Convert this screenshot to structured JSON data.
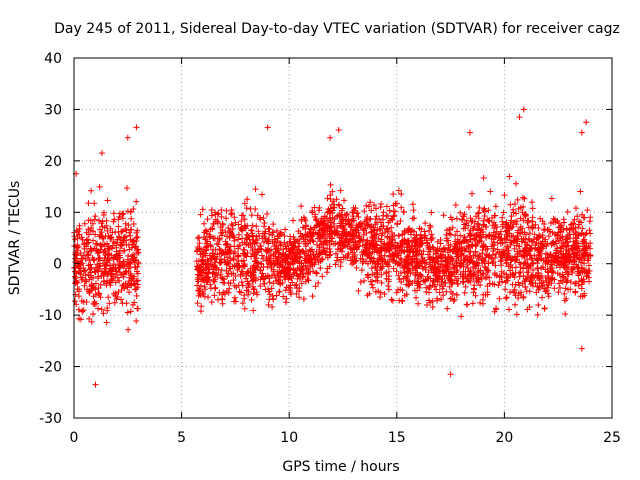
{
  "chart_data": {
    "type": "scatter",
    "title": "Day 245 of 2011, Sidereal Day-to-day VTEC variation (SDTVAR) for receiver cagz",
    "xlabel": "GPS time / hours",
    "ylabel": "SDTVAR / TECUs",
    "xlim": [
      0,
      25
    ],
    "ylim": [
      -30,
      40
    ],
    "xticks": [
      0,
      5,
      10,
      15,
      20,
      25
    ],
    "yticks": [
      -30,
      -20,
      -10,
      0,
      10,
      20,
      30,
      40
    ],
    "grid": true,
    "marker": "+",
    "color": "#ff0000",
    "series": [
      {
        "name": "SDTVAR",
        "description_of_density": "dense red '+' markers; approximate envelope of the point cloud sampled per hour",
        "segments": [
          {
            "x_range": [
              0.0,
              3.0
            ]
          },
          {
            "x_range": [
              5.7,
              24.0
            ]
          }
        ],
        "envelope": [
          {
            "x": 0.0,
            "center": 0,
            "spread": 8
          },
          {
            "x": 0.5,
            "center": 0,
            "spread": 9
          },
          {
            "x": 1.0,
            "center": 0,
            "spread": 10
          },
          {
            "x": 1.5,
            "center": 1,
            "spread": 9
          },
          {
            "x": 2.0,
            "center": 1,
            "spread": 9
          },
          {
            "x": 2.5,
            "center": 1,
            "spread": 10
          },
          {
            "x": 3.0,
            "center": 0,
            "spread": 8
          },
          {
            "x": 5.7,
            "center": 0,
            "spread": 7
          },
          {
            "x": 6.5,
            "center": 1,
            "spread": 8
          },
          {
            "x": 7.5,
            "center": 2,
            "spread": 9
          },
          {
            "x": 8.5,
            "center": 2,
            "spread": 9
          },
          {
            "x": 9.0,
            "center": 1,
            "spread": 8
          },
          {
            "x": 10.0,
            "center": 0,
            "spread": 5
          },
          {
            "x": 11.0,
            "center": 3,
            "spread": 7
          },
          {
            "x": 12.0,
            "center": 7,
            "spread": 7
          },
          {
            "x": 13.0,
            "center": 5,
            "spread": 5
          },
          {
            "x": 14.0,
            "center": 3,
            "spread": 8
          },
          {
            "x": 15.0,
            "center": 3,
            "spread": 8
          },
          {
            "x": 16.0,
            "center": 1,
            "spread": 7
          },
          {
            "x": 17.0,
            "center": 0,
            "spread": 6
          },
          {
            "x": 18.0,
            "center": 2,
            "spread": 8
          },
          {
            "x": 19.0,
            "center": 3,
            "spread": 9
          },
          {
            "x": 20.0,
            "center": 3,
            "spread": 9
          },
          {
            "x": 21.0,
            "center": 2,
            "spread": 9
          },
          {
            "x": 22.0,
            "center": 1,
            "spread": 7
          },
          {
            "x": 23.0,
            "center": 2,
            "spread": 7
          },
          {
            "x": 24.0,
            "center": 2,
            "spread": 8
          }
        ],
        "notable_points": [
          {
            "x": 1.0,
            "y": -23.5
          },
          {
            "x": 1.3,
            "y": 21.5
          },
          {
            "x": 2.5,
            "y": 24.5
          },
          {
            "x": 2.9,
            "y": 26.5
          },
          {
            "x": 9.0,
            "y": 26.5
          },
          {
            "x": 11.9,
            "y": 24.5
          },
          {
            "x": 12.3,
            "y": 26.0
          },
          {
            "x": 17.5,
            "y": -21.5
          },
          {
            "x": 18.4,
            "y": 25.5
          },
          {
            "x": 20.9,
            "y": 30.0
          },
          {
            "x": 20.7,
            "y": 28.5
          },
          {
            "x": 23.8,
            "y": 27.5
          },
          {
            "x": 23.6,
            "y": 25.5
          },
          {
            "x": 0.1,
            "y": 17.5
          },
          {
            "x": 23.6,
            "y": -16.5
          }
        ]
      }
    ]
  }
}
